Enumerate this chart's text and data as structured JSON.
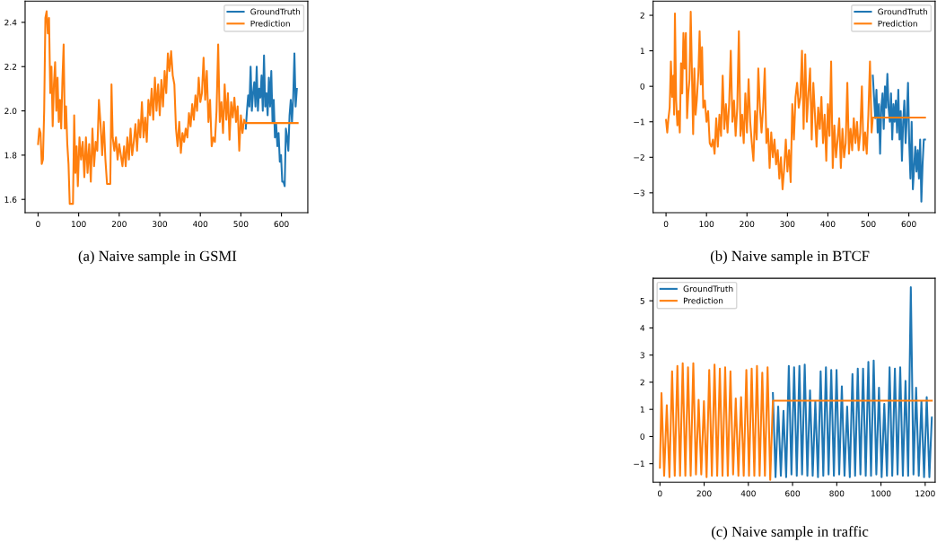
{
  "chart_data": [
    {
      "type": "line",
      "title": "(a) Naive sample in GSMI",
      "xlim": [
        -32,
        665
      ],
      "ylim": [
        1.54,
        2.496
      ],
      "xticks": [
        0,
        100,
        200,
        300,
        400,
        500,
        600
      ],
      "yticks": [
        1.6,
        1.8,
        {
          "value": 2.0,
          "label": "2.0"
        },
        2.2,
        2.4
      ],
      "legend": "top right",
      "grid": false,
      "series": [
        {
          "name": "GroundTruth",
          "color": "#1f77b4",
          "x": [
            512,
            515,
            518,
            521,
            524,
            527,
            530,
            533,
            536,
            539,
            542,
            545,
            548,
            551,
            554,
            557,
            560,
            563,
            566,
            569,
            572,
            575,
            578,
            581,
            584,
            587,
            590,
            593,
            596,
            599,
            602,
            605,
            608,
            611,
            614,
            617,
            620,
            623,
            626,
            629,
            632,
            635,
            638
          ],
          "values": [
            1.92,
            2.0,
            2.07,
            2.02,
            2.2,
            2.0,
            2.08,
            2.13,
            2.02,
            2.2,
            2.0,
            2.1,
            2.06,
            2.16,
            2.0,
            2.25,
            2.02,
            2.08,
            1.98,
            2.15,
            2.02,
            2.18,
            1.95,
            2.05,
            1.88,
            1.94,
            1.84,
            1.9,
            1.77,
            1.8,
            1.68,
            1.68,
            1.66,
            1.92,
            1.88,
            1.82,
            1.98,
            2.05,
            1.95,
            2.06,
            2.26,
            2.02,
            2.1
          ]
        },
        {
          "name": "Prediction",
          "color": "#ff7f0e",
          "x": [
            0,
            3,
            6,
            9,
            12,
            15,
            18,
            21,
            24,
            27,
            30,
            33,
            36,
            39,
            42,
            45,
            48,
            51,
            54,
            57,
            60,
            63,
            66,
            69,
            72,
            75,
            78,
            82,
            86,
            89,
            92,
            95,
            98,
            102,
            106,
            110,
            114,
            118,
            122,
            126,
            130,
            134,
            138,
            142,
            146,
            150,
            154,
            158,
            162,
            166,
            170,
            174,
            178,
            181,
            184,
            188,
            192,
            196,
            200,
            204,
            208,
            212,
            216,
            220,
            224,
            228,
            232,
            236,
            240,
            244,
            248,
            252,
            256,
            260,
            264,
            268,
            272,
            276,
            280,
            284,
            288,
            292,
            296,
            300,
            304,
            308,
            312,
            316,
            320,
            324,
            328,
            332,
            336,
            340,
            344,
            348,
            352,
            356,
            360,
            364,
            368,
            372,
            376,
            380,
            384,
            388,
            392,
            396,
            400,
            404,
            408,
            412,
            416,
            420,
            424,
            428,
            432,
            436,
            440,
            444,
            448,
            452,
            456,
            460,
            464,
            468,
            472,
            476,
            480,
            484,
            488,
            492,
            496,
            500,
            504,
            508,
            511,
            640
          ],
          "values": [
            1.85,
            1.92,
            1.9,
            1.76,
            1.78,
            2.0,
            2.42,
            2.45,
            2.35,
            2.42,
            2.08,
            2.2,
            1.93,
            2.12,
            2.22,
            2.0,
            2.15,
            1.95,
            2.05,
            1.92,
            2.14,
            2.3,
            1.92,
            2.02,
            1.85,
            1.76,
            1.58,
            1.58,
            1.58,
            1.98,
            1.72,
            1.84,
            1.66,
            1.88,
            1.78,
            1.86,
            1.7,
            1.88,
            1.72,
            1.85,
            1.68,
            1.92,
            1.75,
            1.86,
            1.82,
            2.05,
            1.94,
            1.8,
            1.95,
            1.78,
            1.67,
            1.67,
            1.67,
            2.12,
            1.88,
            1.82,
            1.88,
            1.78,
            1.85,
            1.8,
            1.75,
            1.84,
            1.75,
            1.88,
            1.78,
            1.92,
            1.8,
            1.86,
            1.94,
            1.82,
            1.96,
            1.88,
            2.04,
            1.88,
            1.97,
            1.86,
            2.05,
            1.98,
            2.1,
            1.96,
            2.15,
            2.0,
            2.12,
            1.98,
            2.14,
            2.02,
            2.18,
            2.08,
            2.26,
            2.18,
            2.27,
            2.16,
            2.12,
            1.92,
            1.84,
            1.95,
            1.81,
            1.9,
            1.86,
            1.92,
            1.88,
            1.99,
            1.93,
            2.03,
            1.96,
            2.07,
            2.0,
            2.15,
            2.04,
            2.08,
            2.24,
            2.05,
            2.18,
            1.95,
            2.05,
            1.84,
            1.88,
            1.86,
            2.0,
            2.3,
            1.95,
            2.04,
            1.9,
            2.12,
            1.96,
            2.08,
            1.87,
            2.04,
            1.97,
            2.06,
            1.95,
            2.02,
            1.82,
            1.98,
            1.9,
            1.96,
            1.945,
            1.945
          ]
        }
      ]
    },
    {
      "type": "line",
      "title": "(b) Naive sample in BTCF",
      "xlim": [
        -32,
        665
      ],
      "ylim": [
        -3.56,
        2.4
      ],
      "xticks": [
        0,
        100,
        200,
        300,
        400,
        500,
        600
      ],
      "yticks": [
        -3,
        -2,
        -1,
        0,
        1,
        2
      ],
      "legend": "top right",
      "grid": false,
      "series": [
        {
          "name": "GroundTruth",
          "color": "#1f77b4",
          "x": [
            511,
            514,
            517,
            520,
            523,
            526,
            529,
            532,
            535,
            538,
            541,
            544,
            547,
            550,
            553,
            556,
            559,
            562,
            565,
            568,
            571,
            574,
            577,
            580,
            583,
            586,
            589,
            592,
            595,
            598,
            601,
            604,
            607,
            610,
            613,
            616,
            619,
            622,
            625,
            628,
            631,
            634,
            637,
            640
          ],
          "values": [
            0.3,
            -0.3,
            -0.9,
            -0.1,
            -1.3,
            -0.5,
            -1.9,
            -0.6,
            -0.2,
            -1.2,
            0.0,
            -0.6,
            0.35,
            -0.6,
            -1.0,
            -0.2,
            -1.5,
            -0.5,
            -1.0,
            -0.4,
            -1.3,
            -0.1,
            -1.5,
            -0.7,
            -2.1,
            -1.0,
            -0.4,
            -1.6,
            -0.9,
            0.1,
            -1.6,
            -2.6,
            -1.0,
            -2.9,
            -2.3,
            -1.7,
            -2.4,
            -1.8,
            -2.6,
            -1.5,
            -3.25,
            -2.2,
            -1.5,
            -1.5
          ]
        },
        {
          "name": "Prediction",
          "color": "#ff7f0e",
          "x": [
            0,
            3,
            6,
            9,
            12,
            15,
            18,
            20,
            22,
            25,
            28,
            31,
            34,
            37,
            40,
            43,
            46,
            49,
            52,
            55,
            58,
            61,
            64,
            67,
            70,
            73,
            76,
            80,
            83,
            86,
            89,
            92,
            96,
            100,
            104,
            108,
            112,
            116,
            120,
            124,
            128,
            132,
            136,
            140,
            144,
            148,
            152,
            156,
            160,
            164,
            168,
            172,
            176,
            180,
            184,
            188,
            192,
            196,
            200,
            204,
            208,
            212,
            216,
            220,
            224,
            228,
            232,
            236,
            240,
            244,
            248,
            252,
            256,
            260,
            264,
            268,
            272,
            276,
            280,
            284,
            288,
            292,
            296,
            300,
            304,
            308,
            312,
            316,
            320,
            324,
            328,
            332,
            336,
            340,
            344,
            348,
            352,
            356,
            360,
            364,
            368,
            372,
            376,
            380,
            384,
            388,
            392,
            396,
            400,
            404,
            408,
            412,
            416,
            420,
            424,
            428,
            432,
            436,
            440,
            444,
            448,
            452,
            456,
            460,
            464,
            468,
            472,
            476,
            480,
            484,
            488,
            492,
            496,
            500,
            504,
            508,
            511,
            640
          ],
          "values": [
            -0.95,
            -1.3,
            -0.9,
            -0.6,
            0.7,
            -0.3,
            0.3,
            -0.8,
            2.05,
            -0.4,
            -1.1,
            -0.7,
            -1.3,
            0.65,
            -0.2,
            1.5,
            0.5,
            1.5,
            -0.9,
            -0.2,
            0.2,
            2.1,
            0.4,
            -1.35,
            0.5,
            -0.8,
            -0.4,
            0.4,
            1.55,
            0.05,
            1.1,
            -0.6,
            -0.4,
            -1.0,
            -0.7,
            -1.6,
            -1.7,
            -1.5,
            -1.9,
            -0.9,
            -1.7,
            -0.8,
            -1.4,
            0.3,
            -1.2,
            -0.5,
            -1.3,
            -0.5,
            1.0,
            -1.0,
            -0.4,
            -1.4,
            -0.6,
            1.55,
            -1.4,
            -0.8,
            -1.6,
            -0.2,
            -1.3,
            0.2,
            -1.0,
            -1.6,
            -2.1,
            -0.7,
            -1.5,
            0.5,
            -0.6,
            -1.3,
            -0.6,
            0.5,
            -1.6,
            -1.2,
            -2.3,
            -1.3,
            -2.0,
            -1.5,
            -2.2,
            -1.8,
            -2.6,
            -2.0,
            -2.9,
            -2.3,
            -1.5,
            -2.4,
            -1.8,
            -2.7,
            -0.5,
            -1.5,
            -0.3,
            0.1,
            -0.6,
            -0.3,
            1.0,
            -1.2,
            0.9,
            -1.0,
            -0.2,
            0.5,
            -1.5,
            0.1,
            -0.8,
            -1.7,
            -0.6,
            -1.2,
            -0.3,
            -1.6,
            -0.8,
            -2.1,
            -0.5,
            -1.4,
            0.7,
            -2.3,
            -1.1,
            -2.0,
            -1.5,
            -0.9,
            -2.3,
            -1.2,
            -2.0,
            -1.6,
            0.1,
            -1.9,
            -1.2,
            -1.8,
            -0.9,
            -1.6,
            -1.0,
            -1.8,
            -1.3,
            0.0,
            -1.8,
            -1.3,
            -1.9,
            -0.8,
            0.7,
            -1.3,
            -0.88,
            -0.88
          ]
        }
      ]
    },
    {
      "type": "line",
      "title": "(c) Naive sample in traffic",
      "xlim": [
        -31,
        1245
      ],
      "ylim": [
        -1.68,
        5.83
      ],
      "xticks": [
        0,
        200,
        400,
        600,
        800,
        1000,
        1200
      ],
      "yticks": [
        -1,
        0,
        1,
        2,
        3,
        4,
        5
      ],
      "legend": "top left",
      "grid": false,
      "series": [
        {
          "name": "GroundTruth",
          "color": "#1f77b4",
          "x": [
            511,
            523,
            535,
            547,
            559,
            571,
            583,
            595,
            607,
            619,
            631,
            643,
            655,
            667,
            679,
            691,
            703,
            715,
            727,
            739,
            751,
            763,
            775,
            787,
            799,
            811,
            823,
            835,
            847,
            859,
            871,
            883,
            895,
            907,
            919,
            931,
            943,
            955,
            967,
            979,
            991,
            1003,
            1015,
            1027,
            1039,
            1051,
            1063,
            1075,
            1087,
            1099,
            1111,
            1123,
            1135,
            1147,
            1159,
            1171,
            1183,
            1195,
            1207,
            1219,
            1230
          ],
          "values": [
            1.6,
            -1.5,
            1.1,
            -1.45,
            0.95,
            -1.5,
            2.6,
            -1.4,
            2.55,
            -1.45,
            2.6,
            -1.4,
            2.65,
            -1.45,
            1.7,
            -1.45,
            1.3,
            -1.5,
            2.4,
            -1.45,
            2.55,
            -1.4,
            2.45,
            -1.45,
            2.45,
            -1.4,
            1.85,
            -1.45,
            1.1,
            -1.5,
            2.3,
            -1.45,
            2.5,
            -1.4,
            2.5,
            -1.45,
            2.75,
            -1.45,
            2.8,
            -1.4,
            1.8,
            -1.5,
            1.2,
            -1.45,
            2.55,
            -1.45,
            2.5,
            -1.4,
            2.55,
            -1.45,
            2.05,
            -1.45,
            5.5,
            -1.4,
            1.8,
            -1.45,
            1.3,
            -1.5,
            1.45,
            -1.5,
            0.7
          ]
        },
        {
          "name": "Prediction",
          "color": "#ff7f0e",
          "x": [
            0,
            7,
            19,
            31,
            43,
            55,
            67,
            79,
            91,
            103,
            115,
            127,
            139,
            151,
            163,
            175,
            187,
            199,
            211,
            223,
            235,
            247,
            259,
            271,
            283,
            295,
            307,
            319,
            331,
            343,
            355,
            367,
            379,
            391,
            403,
            415,
            427,
            439,
            451,
            463,
            475,
            487,
            499,
            511,
            1230
          ],
          "values": [
            -1.15,
            1.6,
            -1.45,
            1.15,
            -1.5,
            2.4,
            -1.45,
            2.6,
            -1.45,
            2.7,
            -1.45,
            2.55,
            -1.45,
            2.7,
            -1.4,
            1.35,
            -1.4,
            1.3,
            -1.5,
            2.45,
            -1.45,
            2.65,
            -1.45,
            2.5,
            -1.45,
            2.55,
            -1.45,
            2.4,
            -1.4,
            1.4,
            -1.45,
            1.45,
            -1.45,
            2.45,
            -1.45,
            2.5,
            -1.45,
            2.6,
            -1.45,
            2.35,
            -1.45,
            2.55,
            -1.6,
            1.32,
            1.32
          ]
        }
      ]
    }
  ]
}
